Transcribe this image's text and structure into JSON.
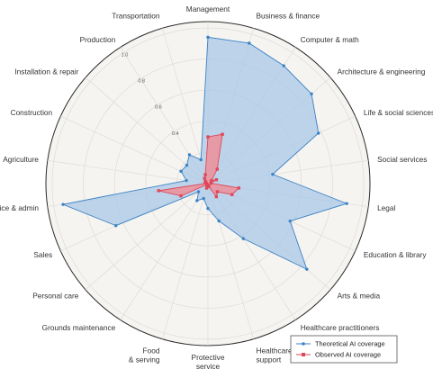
{
  "chart_data": {
    "type": "radar",
    "categories": [
      "Management",
      "Business & finance",
      "Computer & math",
      "Architecture & engineering",
      "Life & social sciences",
      "Social services",
      "Legal",
      "Education & library",
      "Arts & media",
      "Healthcare practitioners",
      "Healthcare support",
      "Protective service",
      "Food & serving",
      "Grounds maintenance",
      "Personal care",
      "Sales",
      "Office & admin",
      "Agriculture",
      "Construction",
      "Installation & repair",
      "Production",
      "Transportation"
    ],
    "series": [
      {
        "name": "Theoretical AI coverage",
        "color": "#3b82c4",
        "fill": "#a8c8e8",
        "values": [
          0.94,
          0.94,
          0.9,
          0.88,
          0.78,
          0.42,
          0.9,
          0.58,
          0.84,
          0.42,
          0.25,
          0.16,
          0.1,
          0.13,
          0.08,
          0.65,
          0.94,
          0.14,
          0.19,
          0.18,
          0.22,
          0.16
        ]
      },
      {
        "name": "Observed AI coverage",
        "color": "#e0475b",
        "fill": "#ec8f99",
        "values": [
          0.3,
          0.33,
          0.11,
          0.03,
          0.06,
          0.02,
          0.2,
          0.17,
          0.08,
          0.1,
          0.02,
          0.01,
          0.03,
          0.01,
          0.01,
          0.19,
          0.32,
          0.01,
          0.02,
          0.02,
          0.04,
          0.06
        ]
      }
    ],
    "r_ticks": [
      "0.4",
      "0.6",
      "0.8",
      "1.0"
    ],
    "r_tick_values": [
      0.4,
      0.6,
      0.8,
      1.0
    ],
    "rlim": [
      0,
      1.0
    ],
    "grid": true,
    "legend_position": "bottom-right"
  }
}
